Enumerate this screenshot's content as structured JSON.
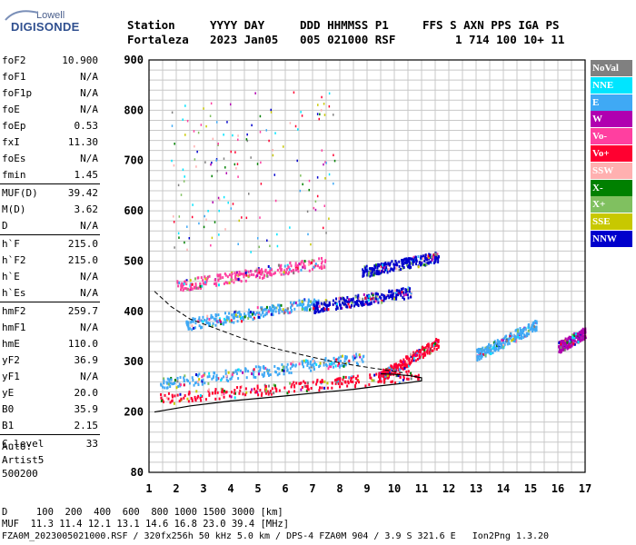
{
  "logo": {
    "line1": "Lowell",
    "line2": "DIGISONDE"
  },
  "header": {
    "labels": [
      {
        "text": "Station",
        "x": 140
      },
      {
        "text": "YYYY DAY",
        "x": 231
      },
      {
        "text": "DDD HHMMSS P1",
        "x": 330
      },
      {
        "text": "FFS S AXN PPS IGA PS",
        "x": 465
      }
    ],
    "values": [
      {
        "text": "Fortaleza",
        "x": 140
      },
      {
        "text": "2023 Jan05",
        "x": 231
      },
      {
        "text": "005 021000 RSF",
        "x": 330
      },
      {
        "text": "1 714 100 10+ 11",
        "x": 501
      }
    ]
  },
  "params": [
    {
      "name": "foF2",
      "value": "10.900"
    },
    {
      "name": "foF1",
      "value": "N/A"
    },
    {
      "name": "foF1p",
      "value": "N/A"
    },
    {
      "name": "foE",
      "value": "N/A"
    },
    {
      "name": "foEp",
      "value": "0.53"
    },
    {
      "name": "fxI",
      "value": "11.30"
    },
    {
      "name": "foEs",
      "value": "N/A"
    },
    {
      "name": "fmin",
      "value": "1.45"
    },
    {
      "name": "MUF(D)",
      "value": "39.42"
    },
    {
      "name": "M(D)",
      "value": "3.62"
    },
    {
      "name": "D",
      "value": "N/A"
    },
    {
      "name": "h`F",
      "value": "215.0"
    },
    {
      "name": "h`F2",
      "value": "215.0"
    },
    {
      "name": "h`E",
      "value": "N/A"
    },
    {
      "name": "h`Es",
      "value": "N/A"
    },
    {
      "name": "hmF2",
      "value": "259.7"
    },
    {
      "name": "hmF1",
      "value": "N/A"
    },
    {
      "name": "hmE",
      "value": "110.0"
    },
    {
      "name": "yF2",
      "value": "36.9"
    },
    {
      "name": "yF1",
      "value": "N/A"
    },
    {
      "name": "yE",
      "value": "20.0"
    },
    {
      "name": "B0",
      "value": "35.9"
    },
    {
      "name": "B1",
      "value": "2.15"
    },
    {
      "name": "C-level",
      "value": "33"
    }
  ],
  "auto": {
    "line1": "Auto:",
    "line2": "Artist5",
    "line3": "500200"
  },
  "legend": [
    {
      "label": "NoVal",
      "color": "#808080"
    },
    {
      "label": "NNE",
      "color": "#00e5ff"
    },
    {
      "label": "E",
      "color": "#3fa9f5"
    },
    {
      "label": "W",
      "color": "#b000b0"
    },
    {
      "label": "Vo-",
      "color": "#ff3fa0"
    },
    {
      "label": "Vo+",
      "color": "#ff0030"
    },
    {
      "label": "SSW",
      "color": "#ffb0b0"
    },
    {
      "label": "X-",
      "color": "#008000"
    },
    {
      "label": "X+",
      "color": "#80c060"
    },
    {
      "label": "SSE",
      "color": "#c8c800"
    },
    {
      "label": "NNW",
      "color": "#0000cc"
    }
  ],
  "chart_data": {
    "type": "scatter",
    "x_range": [
      1,
      17
    ],
    "y_range": [
      80,
      900
    ],
    "x_ticks": [
      1,
      2,
      3,
      4,
      5,
      6,
      7,
      8,
      9,
      10,
      11,
      12,
      13,
      14,
      15,
      16,
      17
    ],
    "y_ticks": [
      80,
      200,
      300,
      400,
      500,
      600,
      700,
      800,
      900
    ],
    "grid": true,
    "profile_solid": [
      [
        1.2,
        200
      ],
      [
        2.5,
        212
      ],
      [
        4,
        222
      ],
      [
        6,
        232
      ],
      [
        7.5,
        240
      ],
      [
        8.5,
        245
      ],
      [
        9.5,
        252
      ],
      [
        10.5,
        258
      ],
      [
        11,
        262
      ],
      [
        11,
        268
      ],
      [
        10.6,
        272
      ],
      [
        10,
        275
      ],
      [
        9.5,
        276
      ]
    ],
    "profile_dashed": [
      [
        1.2,
        440
      ],
      [
        1.8,
        410
      ],
      [
        2.5,
        385
      ],
      [
        3.5,
        365
      ],
      [
        4.5,
        345
      ],
      [
        5.5,
        328
      ],
      [
        6.5,
        315
      ],
      [
        7.5,
        303
      ],
      [
        8.5,
        293
      ],
      [
        9.5,
        285
      ],
      [
        10.3,
        278
      ]
    ],
    "traces": [
      {
        "name": "F-trace lower",
        "x_from": 1.4,
        "x_to": 10.9,
        "y_from": 228,
        "y_to": 275,
        "color": "#ff0030"
      },
      {
        "name": "F-trace upper",
        "x_from": 1.4,
        "x_to": 9.0,
        "y_from": 258,
        "y_to": 310,
        "color": "#3fa9f5"
      },
      {
        "name": "Spread F",
        "x_from": 9.4,
        "x_to": 11.6,
        "y_from": 270,
        "y_to": 340,
        "color": "#ff0030"
      },
      {
        "name": "Second hop O",
        "x_from": 2.0,
        "x_to": 7.5,
        "y_from": 452,
        "y_to": 500,
        "color": "#ff3fa0"
      },
      {
        "name": "Second hop E",
        "x_from": 2.3,
        "x_to": 7.2,
        "y_from": 375,
        "y_to": 420,
        "color": "#3fa9f5"
      },
      {
        "name": "Second hop NNW",
        "x_from": 7.0,
        "x_to": 10.6,
        "y_from": 410,
        "y_to": 440,
        "color": "#0000cc"
      },
      {
        "name": "Third hop",
        "x_from": 8.8,
        "x_to": 11.6,
        "y_from": 480,
        "y_to": 510,
        "color": "#0000cc"
      },
      {
        "name": "Cluster 14",
        "x_from": 13.0,
        "x_to": 15.2,
        "y_from": 315,
        "y_to": 375,
        "color": "#3fa9f5"
      },
      {
        "name": "Cluster 16.5",
        "x_from": 16.0,
        "x_to": 17.0,
        "y_from": 330,
        "y_to": 360,
        "color": "#b000b0"
      }
    ]
  },
  "footer": {
    "d_row": "D     100  200  400  600  800 1000 1500 3000 [km]",
    "muf_row": "MUF  11.3 11.4 12.1 13.1 14.6 16.8 23.0 39.4 [MHz]",
    "file_row": "FZA0M_2023005021000.RSF / 320fx256h 50 kHz 5.0 km / DPS-4 FZA0M 904 / 3.9 S 321.6 E   Ion2Png 1.3.20"
  }
}
